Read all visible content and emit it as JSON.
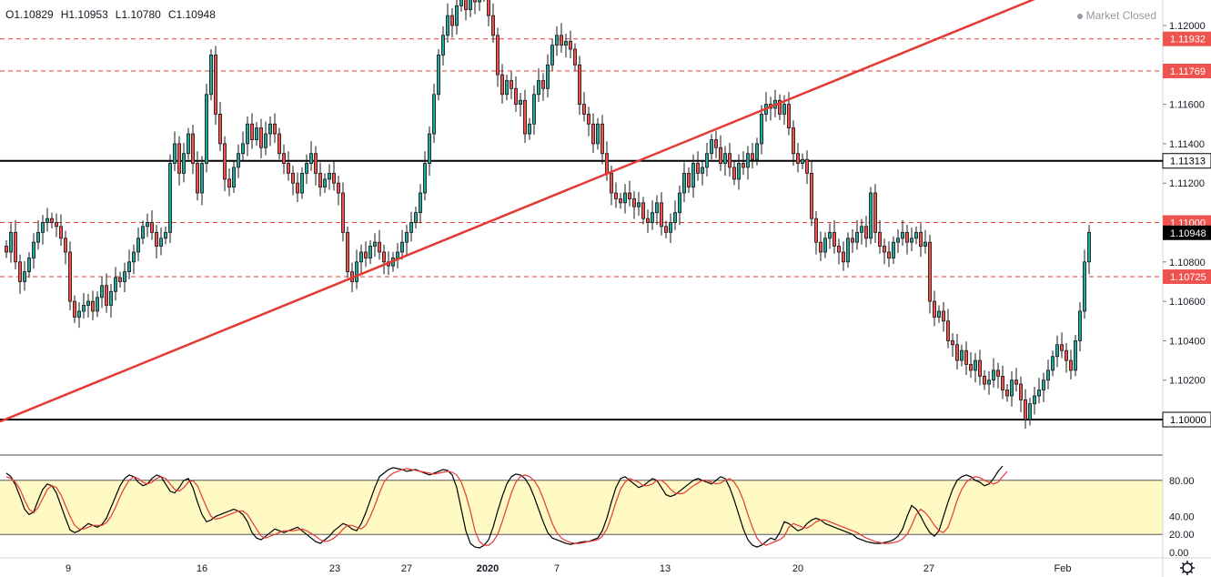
{
  "header": {
    "open": "O1.10829",
    "high": "H1.10953",
    "low": "L1.10780",
    "close": "C1.10948",
    "market_status": "Market Closed"
  },
  "colors": {
    "up": "#26a69a",
    "down": "#ef5350",
    "candle_body": "#1a1a1a",
    "trendline": "#e53935",
    "level_dashed": "#e53935",
    "level_solid": "#000000",
    "stoch_k": "#000000",
    "stoch_d": "#e53935",
    "stoch_band": "#fff9c4",
    "price_tag": "#ef5350"
  },
  "chart_data": [
    {
      "type": "candlestick",
      "title": "",
      "y_axis_ticks": [
        "1.12000",
        "1.11600",
        "1.11400",
        "1.11200",
        "1.10800",
        "1.10600",
        "1.10400",
        "1.10200"
      ],
      "x_axis_ticks": [
        "9",
        "16",
        "23",
        "27",
        "2020",
        "7",
        "13",
        "20",
        "27",
        "Feb"
      ],
      "ylim": [
        1.0985,
        1.122
      ],
      "horizontal_levels": [
        {
          "value": 1.11932,
          "label": "1.11932",
          "style": "dashed"
        },
        {
          "value": 1.11769,
          "label": "1.11769",
          "style": "dashed"
        },
        {
          "value": 1.11313,
          "label": "1.11313",
          "style": "solid"
        },
        {
          "value": 1.11,
          "label": "1.11000",
          "style": "dashed"
        },
        {
          "value": 1.10725,
          "label": "1.10725",
          "style": "dashed"
        },
        {
          "value": 1.1,
          "label": "1.10000",
          "style": "solid"
        }
      ],
      "last_price": {
        "value": 1.10948,
        "label": "1.10948"
      },
      "trendline": {
        "from": [
          0,
          1.0999
        ],
        "to": [
          233,
          1.122
        ]
      },
      "closes": [
        1.1085,
        1.1095,
        1.108,
        1.107,
        1.1075,
        1.1082,
        1.109,
        1.1095,
        1.11,
        1.1102,
        1.11,
        1.1098,
        1.1092,
        1.1085,
        1.106,
        1.1052,
        1.1055,
        1.1058,
        1.106,
        1.1055,
        1.1062,
        1.1068,
        1.1058,
        1.1065,
        1.1072,
        1.107,
        1.1075,
        1.108,
        1.1085,
        1.1092,
        1.1098,
        1.11,
        1.1095,
        1.1088,
        1.1092,
        1.1095,
        1.113,
        1.114,
        1.1125,
        1.1135,
        1.1145,
        1.113,
        1.1115,
        1.113,
        1.1165,
        1.1185,
        1.1155,
        1.114,
        1.1122,
        1.1118,
        1.1128,
        1.1135,
        1.114,
        1.115,
        1.1142,
        1.1148,
        1.1138,
        1.1145,
        1.115,
        1.1145,
        1.1135,
        1.113,
        1.1125,
        1.112,
        1.1115,
        1.1125,
        1.113,
        1.1135,
        1.1125,
        1.1118,
        1.1122,
        1.1125,
        1.112,
        1.1115,
        1.1095,
        1.1075,
        1.107,
        1.108,
        1.1085,
        1.1082,
        1.1088,
        1.109,
        1.1085,
        1.108,
        1.1078,
        1.1082,
        1.1085,
        1.109,
        1.1095,
        1.11,
        1.1105,
        1.1115,
        1.113,
        1.1145,
        1.1165,
        1.1185,
        1.1195,
        1.1205,
        1.12,
        1.121,
        1.1215,
        1.1208,
        1.1218,
        1.1212,
        1.122,
        1.1215,
        1.1205,
        1.1195,
        1.1175,
        1.1165,
        1.1172,
        1.1168,
        1.116,
        1.1162,
        1.1145,
        1.115,
        1.1165,
        1.1172,
        1.1168,
        1.118,
        1.119,
        1.1195,
        1.119,
        1.1192,
        1.1188,
        1.118,
        1.116,
        1.1155,
        1.115,
        1.114,
        1.115,
        1.1135,
        1.1125,
        1.1115,
        1.1112,
        1.111,
        1.1115,
        1.1112,
        1.1108,
        1.111,
        1.1102,
        1.11,
        1.1105,
        1.111,
        1.1098,
        1.1095,
        1.11,
        1.1105,
        1.1115,
        1.1125,
        1.1118,
        1.113,
        1.1125,
        1.1128,
        1.1135,
        1.1142,
        1.1138,
        1.113,
        1.1135,
        1.1128,
        1.1122,
        1.113,
        1.1128,
        1.1135,
        1.1132,
        1.114,
        1.1155,
        1.116,
        1.1158,
        1.1162,
        1.1155,
        1.116,
        1.1148,
        1.1135,
        1.113,
        1.1132,
        1.1125,
        1.1102,
        1.109,
        1.1085,
        1.1092,
        1.1095,
        1.1088,
        1.1085,
        1.108,
        1.1092,
        1.109,
        1.1095,
        1.1098,
        1.1092,
        1.1115,
        1.1095,
        1.1088,
        1.1085,
        1.1082,
        1.109,
        1.1092,
        1.1095,
        1.109,
        1.1092,
        1.1095,
        1.1088,
        1.109,
        1.106,
        1.1052,
        1.1055,
        1.105,
        1.104,
        1.1038,
        1.103,
        1.1035,
        1.1028,
        1.1025,
        1.103,
        1.1022,
        1.1018,
        1.102,
        1.1025,
        1.1022,
        1.1015,
        1.1012,
        1.102,
        1.1018,
        1.101,
        1.1,
        1.1008,
        1.1012,
        1.1015,
        1.102,
        1.1025,
        1.1032,
        1.1038,
        1.1035,
        1.103,
        1.1025,
        1.104,
        1.1055,
        1.108,
        1.1095
      ],
      "overlay_text": [
        "Market Closed"
      ]
    },
    {
      "type": "line",
      "title": "",
      "y_axis_ticks": [
        "80.00",
        "40.00",
        "20.00",
        "0.00"
      ],
      "ylim": [
        0,
        100
      ],
      "band": [
        20,
        80
      ],
      "series": [
        {
          "color": "black",
          "values": [
            88,
            84,
            75,
            62,
            48,
            42,
            45,
            58,
            70,
            76,
            74,
            66,
            52,
            38,
            25,
            22,
            24,
            28,
            32,
            30,
            28,
            31,
            38,
            50,
            62,
            74,
            82,
            86,
            84,
            78,
            74,
            76,
            82,
            86,
            84,
            76,
            68,
            66,
            72,
            80,
            82,
            72,
            56,
            42,
            34,
            36,
            40,
            42,
            44,
            46,
            48,
            46,
            42,
            34,
            22,
            16,
            14,
            18,
            22,
            26,
            24,
            22,
            24,
            26,
            28,
            24,
            20,
            16,
            12,
            10,
            14,
            18,
            24,
            28,
            32,
            30,
            26,
            24,
            32,
            44,
            58,
            72,
            84,
            88,
            92,
            94,
            93,
            92,
            90,
            91,
            92,
            90,
            88,
            86,
            88,
            90,
            92,
            91,
            86,
            72,
            48,
            24,
            10,
            6,
            5,
            8,
            14,
            28,
            46,
            62,
            76,
            84,
            87,
            86,
            82,
            74,
            62,
            48,
            34,
            22,
            16,
            14,
            12,
            10,
            9,
            10,
            11,
            12,
            12,
            14,
            16,
            24,
            38,
            56,
            72,
            82,
            84,
            80,
            76,
            72,
            74,
            78,
            82,
            80,
            72,
            64,
            62,
            64,
            68,
            72,
            76,
            80,
            82,
            80,
            78,
            76,
            80,
            84,
            82,
            72,
            58,
            42,
            26,
            14,
            8,
            6,
            8,
            12,
            16,
            14,
            22,
            34,
            32,
            28,
            24,
            26,
            32,
            36,
            38,
            36,
            32,
            30,
            28,
            26,
            24,
            22,
            20,
            16,
            14,
            12,
            11,
            10,
            10,
            11,
            12,
            14,
            18,
            26,
            40,
            52,
            48,
            40,
            30,
            22,
            18,
            24,
            40,
            56,
            70,
            80,
            84,
            86,
            84,
            80,
            78,
            74,
            76,
            82,
            90,
            96
          ]
        },
        {
          "color": "red",
          "values": [
            84,
            82,
            78,
            70,
            58,
            48,
            44,
            50,
            60,
            70,
            74,
            72,
            64,
            52,
            40,
            30,
            26,
            26,
            28,
            30,
            30,
            30,
            33,
            40,
            50,
            62,
            72,
            80,
            84,
            82,
            78,
            76,
            78,
            82,
            84,
            82,
            76,
            70,
            68,
            72,
            78,
            80,
            74,
            62,
            50,
            40,
            37,
            38,
            40,
            42,
            44,
            46,
            46,
            42,
            34,
            26,
            18,
            16,
            18,
            20,
            22,
            24,
            24,
            24,
            25,
            26,
            24,
            21,
            18,
            14,
            12,
            13,
            16,
            20,
            26,
            30,
            30,
            28,
            26,
            30,
            40,
            52,
            66,
            78,
            84,
            88,
            90,
            92,
            93,
            92,
            91,
            90,
            89,
            88,
            87,
            88,
            89,
            90,
            89,
            86,
            78,
            64,
            46,
            24,
            12,
            8,
            8,
            12,
            20,
            34,
            50,
            66,
            78,
            84,
            86,
            84,
            80,
            72,
            60,
            46,
            32,
            22,
            16,
            13,
            11,
            10,
            10,
            11,
            12,
            13,
            14,
            18,
            26,
            40,
            56,
            70,
            78,
            82,
            80,
            78,
            74,
            74,
            76,
            80,
            80,
            76,
            70,
            66,
            65,
            66,
            70,
            74,
            77,
            80,
            80,
            78,
            76,
            77,
            80,
            82,
            78,
            70,
            58,
            42,
            28,
            16,
            10,
            8,
            10,
            12,
            14,
            18,
            28,
            32,
            30,
            28,
            27,
            30,
            34,
            36,
            36,
            34,
            32,
            30,
            28,
            26,
            24,
            22,
            19,
            16,
            14,
            12,
            11,
            10,
            10,
            11,
            12,
            15,
            20,
            30,
            42,
            48,
            44,
            38,
            30,
            24,
            22,
            28,
            42,
            58,
            70,
            78,
            82,
            84,
            83,
            80,
            78,
            76,
            78,
            84,
            90
          ]
        }
      ]
    }
  ]
}
